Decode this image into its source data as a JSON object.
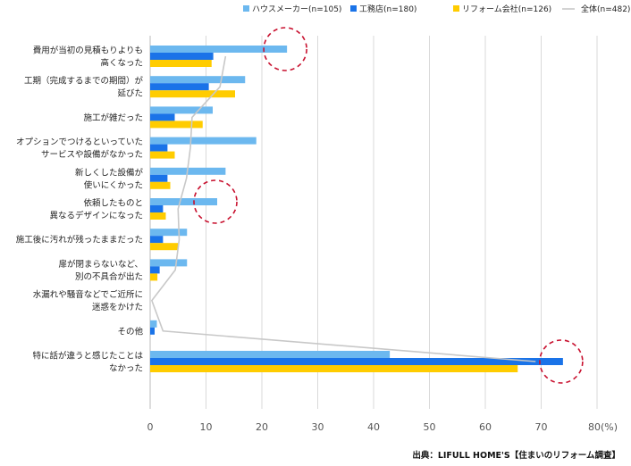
{
  "chart_data": {
    "type": "bar",
    "orientation": "horizontal",
    "title": "",
    "xlabel": "",
    "ylabel": "",
    "unit_label": "(%)",
    "xlim": [
      0,
      80
    ],
    "xticks": [
      "0",
      "10",
      "20",
      "30",
      "40",
      "50",
      "60",
      "70",
      "80"
    ],
    "grid": true,
    "legend_position": "top",
    "categories": [
      [
        "費用が当初の見積もりよりも",
        "高くなった"
      ],
      [
        "工期（完成するまでの期間）が",
        "延びた"
      ],
      [
        "施工が雑だった"
      ],
      [
        "オプションでつけるといっていた",
        "サービスや設備がなかった"
      ],
      [
        "新しくした設備が",
        "使いにくかった"
      ],
      [
        "依頼したものと",
        "異なるデザインになった"
      ],
      [
        "施工後に汚れが残ったままだった"
      ],
      [
        "扉が閉まらないなど、",
        "別の不具合が出た"
      ],
      [
        "水漏れや騒音などでご近所に",
        "迷惑をかけた"
      ],
      [
        "その他"
      ],
      [
        "特に話が違うと感じたことは",
        "なかった"
      ]
    ],
    "series": [
      {
        "name": "ハウスメーカー(n=105)",
        "color": "#6cb8ef",
        "values": [
          24.5,
          17.0,
          11.2,
          19.0,
          13.5,
          12.0,
          6.6,
          6.6,
          0,
          1.2,
          42.9
        ]
      },
      {
        "name": "工務店(n=180)",
        "color": "#1a73e8",
        "values": [
          11.3,
          10.5,
          4.4,
          3.1,
          3.1,
          2.3,
          2.3,
          1.7,
          0,
          0.8,
          73.9
        ]
      },
      {
        "name": "リフォーム会社(n=126)",
        "color": "#ffcc00",
        "values": [
          11.0,
          15.2,
          9.4,
          4.4,
          3.6,
          2.8,
          5.0,
          1.3,
          0,
          0,
          65.8
        ]
      }
    ],
    "line": {
      "name": "全体(n=482)",
      "color": "#c8c8c8",
      "values": [
        13.5,
        12.5,
        7.5,
        7.2,
        6.5,
        5.0,
        5.2,
        4.5,
        0.3,
        2.3,
        69.0
      ]
    },
    "annotations": [
      {
        "type": "dashed-circle",
        "category_index": 0,
        "series": 0
      },
      {
        "type": "dashed-circle",
        "category_index": 5,
        "series": 0
      },
      {
        "type": "dashed-circle",
        "category_index": 10,
        "series": 1
      }
    ]
  },
  "source": "出典：LIFULL HOME'S【住まいのリフォーム調査】"
}
